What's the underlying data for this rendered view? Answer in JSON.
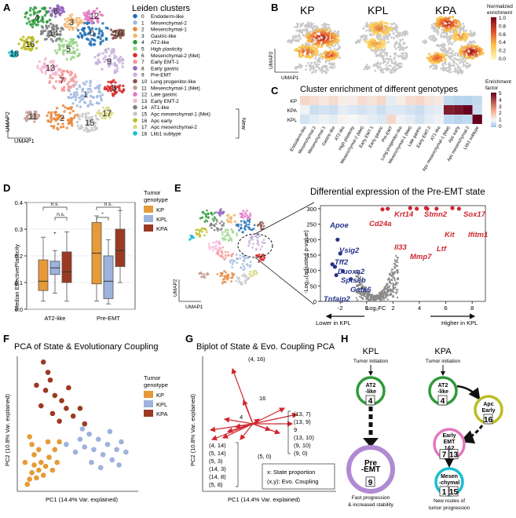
{
  "panel_labels": [
    "A",
    "B",
    "C",
    "D",
    "E",
    "F",
    "G",
    "H"
  ],
  "panel_a": {
    "legend_title": "Leiden clusters",
    "new_label": "New",
    "xlabel": "UMAP1",
    "ylabel": "UMAP2",
    "clusters": [
      {
        "id": "0",
        "name": "Endoderm-like",
        "color": "#1f6fb4"
      },
      {
        "id": "1",
        "name": "Mesenchymal-2",
        "color": "#9fb8e0"
      },
      {
        "id": "2",
        "name": "Mesenchymal-1",
        "color": "#e8873a"
      },
      {
        "id": "3",
        "name": "Gastric-like",
        "color": "#f3b774"
      },
      {
        "id": "4",
        "name": "AT2-like",
        "color": "#2f9a3b"
      },
      {
        "id": "5",
        "name": "High plasticity",
        "color": "#98d48a"
      },
      {
        "id": "6",
        "name": "Mesenchymal-2 (Met)",
        "color": "#d32b2b"
      },
      {
        "id": "7",
        "name": "Early EMT-1",
        "color": "#f39a9a"
      },
      {
        "id": "8",
        "name": "Early gastric",
        "color": "#9467bd"
      },
      {
        "id": "9",
        "name": "Pre-EMT",
        "color": "#c7b3dc"
      },
      {
        "id": "10",
        "name": "Lung progenitor-like",
        "color": "#8c564b"
      },
      {
        "id": "11",
        "name": "Mesenchymal-1 (Met)",
        "color": "#c49c94"
      },
      {
        "id": "12",
        "name": "Late gastric",
        "color": "#e377c2"
      },
      {
        "id": "13",
        "name": "Early EMT-2",
        "color": "#f5b6d6"
      },
      {
        "id": "14",
        "name": "AT1-like",
        "color": "#7f7f7f"
      },
      {
        "id": "15",
        "name": "Apc mesenchymal-1 (Met)",
        "color": "#c7c7c7"
      },
      {
        "id": "16",
        "name": "Apc early",
        "color": "#bcbd22"
      },
      {
        "id": "17",
        "name": "Apc mesenchymal-2",
        "color": "#dbdb8d"
      },
      {
        "id": "18",
        "name": "Lkb1 subtype",
        "color": "#17becf"
      }
    ]
  },
  "panel_b": {
    "titles": [
      "KP",
      "KPL",
      "KPA"
    ],
    "colorbar_title": [
      "Normalized",
      "enrichment"
    ],
    "colorbar_ticks": [
      "1.0",
      "0.8",
      "0.6",
      "0.4",
      "0.2",
      "0.0"
    ],
    "xlabel": "UMAP1",
    "ylabel": "UMAP2"
  },
  "panel_c": {
    "title": "Cluster enrichment of different genotypes",
    "colorbar_title": [
      "Enrichment",
      "factor"
    ],
    "colorbar_ticks": [
      "5",
      "4",
      "3",
      "2",
      "1",
      "0"
    ],
    "rows": [
      "KP",
      "KPA",
      "KPL"
    ],
    "columns": [
      "Endoderm-like",
      "Mesenchymal-2",
      "Mesenchymal-1",
      "Gastric-like",
      "AT2-like",
      "High plasticity",
      "Mesenchymal-2 (Met)",
      "Early EMT-1",
      "Early gastric",
      "Pre-EMT",
      "Lung progenitor-like",
      "Mesenchymal-1 (Met)",
      "Late gastric",
      "Early EMT-2",
      "AT1-like",
      "Apc mesenchymal-1 (Met)",
      "Apc early",
      "Apc mesenchymal-2",
      "Lkb1 subtype"
    ],
    "values": [
      [
        1.6,
        1.5,
        1.3,
        1.5,
        1.2,
        1.2,
        1.5,
        1.4,
        1.6,
        0.8,
        1.2,
        1.5,
        1.6,
        1.4,
        1.3,
        0.4,
        0.3,
        0.3,
        0.4
      ],
      [
        0.9,
        0.5,
        0.6,
        0.5,
        0.8,
        0.7,
        0.6,
        0.7,
        0.5,
        0.7,
        0.7,
        0.6,
        0.5,
        0.7,
        0.8,
        4.6,
        4.7,
        5.0,
        0.5
      ],
      [
        0.6,
        0.8,
        0.9,
        0.8,
        1.1,
        1.0,
        0.9,
        0.8,
        0.7,
        1.6,
        0.9,
        0.8,
        0.6,
        0.8,
        0.9,
        0.4,
        0.3,
        0.4,
        5.0
      ]
    ]
  },
  "panel_d": {
    "chart_data": {
      "type": "box",
      "ylabel": "Median EffectivePlasticity",
      "categories": [
        "AT2-like",
        "Pre-EMT"
      ],
      "ylim": [
        0,
        0.4
      ],
      "yticks": [
        "0.0",
        "0.1",
        "0.2",
        "0.3",
        "0.4"
      ],
      "legend_title": [
        "Tumor",
        "genotype"
      ],
      "series": [
        {
          "name": "KP",
          "color": "#e69a38",
          "boxes": [
            {
              "min": 0.03,
              "q1": 0.07,
              "median": 0.105,
              "q3": 0.185,
              "max": 0.27
            },
            {
              "min": 0.03,
              "q1": 0.095,
              "median": 0.21,
              "q3": 0.325,
              "max": 0.35
            }
          ]
        },
        {
          "name": "KPL",
          "color": "#9db2dc",
          "boxes": [
            {
              "min": 0.06,
              "q1": 0.13,
              "median": 0.155,
              "q3": 0.18,
              "max": 0.22,
              "outliers": [
                0.285
              ]
            },
            {
              "min": 0.02,
              "q1": 0.04,
              "median": 0.105,
              "q3": 0.2,
              "max": 0.26
            }
          ]
        },
        {
          "name": "KPA",
          "color": "#9a3a22",
          "boxes": [
            {
              "min": 0.03,
              "q1": 0.1,
              "median": 0.14,
              "q3": 0.215,
              "max": 0.29
            },
            {
              "min": 0.1,
              "q1": 0.16,
              "median": 0.22,
              "q3": 0.3,
              "max": 0.37
            }
          ]
        }
      ],
      "annotations": [
        "n.s.",
        "n.s.",
        "n.s.",
        "*"
      ]
    }
  },
  "panel_e": {
    "title": "Differential expression of the Pre-EMT state",
    "xlabel": "Log₂FC",
    "ylabel": "-Log₁₀(adjusted p-value)",
    "umap_x": "UMAP1",
    "umap_y": "UMAP2",
    "lower_label": "Lower in KPL",
    "higher_label": "Higher in KPL",
    "chart_data": {
      "type": "scatter",
      "xlim": [
        -3.5,
        9
      ],
      "ylim": [
        0,
        310
      ],
      "xticks": [
        -2,
        0,
        2,
        4,
        6,
        8
      ],
      "yticks": [
        0,
        50,
        100,
        150,
        200,
        250,
        300
      ],
      "down_genes": [
        {
          "name": "Apoe",
          "x": -2.2,
          "y": 200
        },
        {
          "name": "Vsig2",
          "x": -2.0,
          "y": 155
        },
        {
          "name": "Tff2",
          "x": -2.6,
          "y": 120
        },
        {
          "name": "Duoxa2",
          "x": -2.4,
          "y": 112
        },
        {
          "name": "Sptssb",
          "x": -1.8,
          "y": 98
        },
        {
          "name": "Gata6",
          "x": -1.2,
          "y": 72
        },
        {
          "name": "Tnfaip2",
          "x": -2.3,
          "y": 85
        }
      ],
      "up_genes": [
        {
          "name": "Cd24a",
          "x": 1.2,
          "y": 298
        },
        {
          "name": "Krt14",
          "x": 3.3,
          "y": 302
        },
        {
          "name": "Stmn2",
          "x": 4.5,
          "y": 302
        },
        {
          "name": "Sox17",
          "x": 6.5,
          "y": 302
        },
        {
          "name": "Il33",
          "x": 1.6,
          "y": 300
        },
        {
          "name": "Mmp7",
          "x": 3.8,
          "y": 300
        },
        {
          "name": "Ltf",
          "x": 4.6,
          "y": 300
        },
        {
          "name": "Kit",
          "x": 5.3,
          "y": 300
        },
        {
          "name": "Ifitm1",
          "x": 7.0,
          "y": 300
        }
      ]
    }
  },
  "panel_f": {
    "title": "PCA of State & Evolutionary Coupling",
    "xlabel": "PC1 (14.4% Var. explained)",
    "ylabel": "PC2 (10.8% Var. explained)",
    "legend_title": [
      "Tumor",
      "genotype"
    ],
    "chart_data": {
      "type": "scatter",
      "series": [
        {
          "name": "KP",
          "color": "#e69a38",
          "points": [
            [
              0.06,
              0.03
            ],
            [
              0.08,
              0.07
            ],
            [
              0.1,
              0.12
            ],
            [
              0.12,
              0.18
            ],
            [
              0.14,
              0.08
            ],
            [
              0.16,
              0.14
            ],
            [
              0.18,
              0.2
            ],
            [
              0.2,
              0.1
            ],
            [
              0.22,
              0.17
            ],
            [
              0.25,
              0.24
            ],
            [
              0.28,
              0.14
            ],
            [
              0.3,
              0.3
            ],
            [
              0.32,
              0.2
            ],
            [
              0.34,
              0.36
            ],
            [
              0.12,
              0.26
            ],
            [
              0.1,
              0.34
            ],
            [
              0.16,
              0.3
            ],
            [
              0.24,
              0.36
            ],
            [
              0.04,
              0.2
            ],
            [
              0.08,
              0.4
            ]
          ]
        },
        {
          "name": "KPL",
          "color": "#9db2dc",
          "points": [
            [
              0.52,
              0.38
            ],
            [
              0.56,
              0.32
            ],
            [
              0.6,
              0.42
            ],
            [
              0.64,
              0.3
            ],
            [
              0.68,
              0.38
            ],
            [
              0.72,
              0.26
            ],
            [
              0.76,
              0.34
            ],
            [
              0.8,
              0.22
            ],
            [
              0.84,
              0.3
            ],
            [
              0.88,
              0.36
            ],
            [
              0.92,
              0.28
            ],
            [
              0.62,
              0.2
            ],
            [
              0.7,
              0.16
            ],
            [
              0.48,
              0.28
            ],
            [
              0.54,
              0.46
            ],
            [
              0.4,
              0.34
            ],
            [
              0.78,
              0.44
            ],
            [
              0.86,
              0.18
            ]
          ]
        },
        {
          "name": "KPA",
          "color": "#9a3a22",
          "points": [
            [
              0.2,
              0.98
            ],
            [
              0.24,
              0.9
            ],
            [
              0.26,
              0.84
            ],
            [
              0.22,
              0.76
            ],
            [
              0.3,
              0.72
            ],
            [
              0.36,
              0.68
            ],
            [
              0.4,
              0.62
            ],
            [
              0.28,
              0.58
            ],
            [
              0.46,
              0.56
            ],
            [
              0.18,
              0.64
            ],
            [
              0.34,
              0.52
            ],
            [
              0.52,
              0.62
            ],
            [
              0.56,
              0.5
            ],
            [
              0.42,
              0.78
            ],
            [
              0.14,
              0.8
            ]
          ]
        }
      ]
    }
  },
  "panel_g": {
    "title": "Biplot of State & Evo. Coupling PCA",
    "xlabel": "PC1 (14.4% Var. explained)",
    "ylabel": "PC2 (10.8% Var. explained)",
    "arrow_labels": [
      "(4, 16)",
      "16",
      "4",
      "(5, 0)"
    ],
    "right_labels": [
      "(13, 7)",
      "(13, 9)",
      "9",
      "(13, 10)",
      "(9, 10)",
      "(9, 0)"
    ],
    "left_labels": [
      "(4, 14)",
      "(5, 14)",
      "(5, 3)",
      "(14, 3)",
      "(14, 8)",
      "(5, 8)"
    ],
    "legend_lines": [
      "x: State proportion",
      "(x,y): Evo. Coupling"
    ]
  },
  "panel_h": {
    "kpl": {
      "title": "KPL",
      "start": "Tumor initiation",
      "n1": {
        "label": "AT2\n-like",
        "num": "4"
      },
      "n2": {
        "label": "Pre\n-EMT",
        "num": "9"
      },
      "caption": [
        "Fast progression",
        "& increased stability"
      ]
    },
    "kpa": {
      "title": "KPA",
      "start": "Tumor initiation",
      "n1": {
        "label": "AT2\n-like",
        "num": "4"
      },
      "n2": {
        "label": "Apc\nEarly",
        "num": "16"
      },
      "n3": {
        "label": "Early\nEMT\n1&2",
        "nums": [
          "7",
          "13"
        ]
      },
      "n4": {
        "label": "Mesen\n-chymal",
        "nums": [
          "1",
          "15"
        ]
      },
      "caption": [
        "New routes of",
        "tumor progression"
      ]
    }
  }
}
